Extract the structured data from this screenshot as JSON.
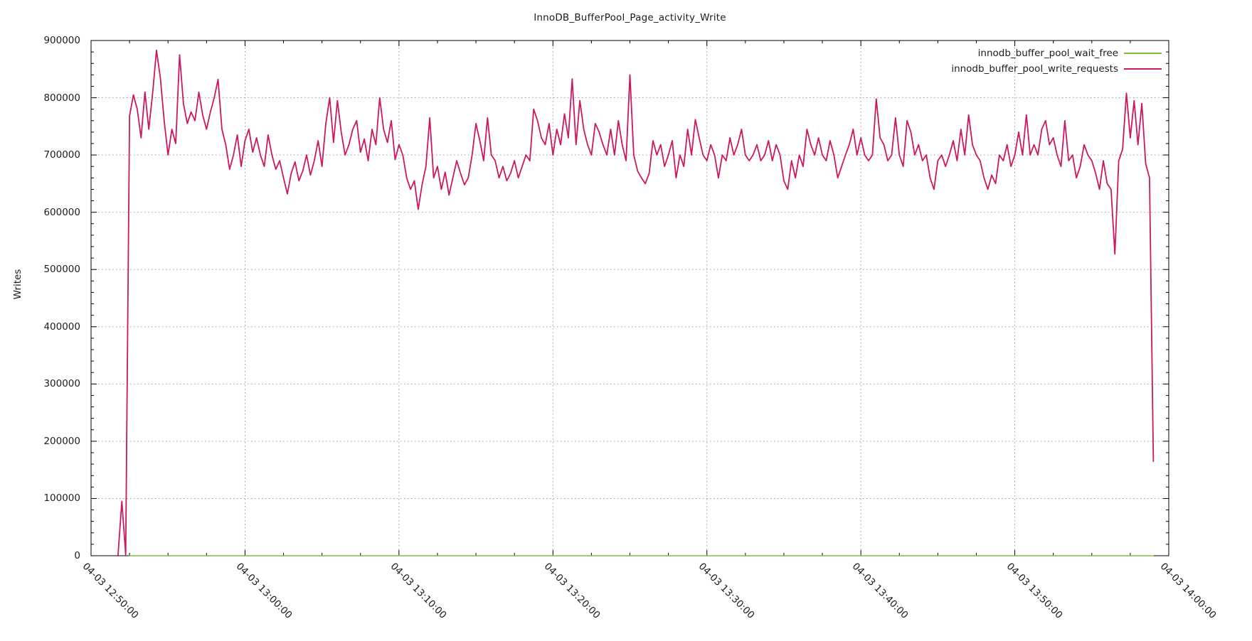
{
  "chart_data": {
    "type": "line",
    "title": "InnoDB_BufferPool_Page_activity_Write",
    "ylabel": "Writes",
    "xlabel": "",
    "ylim": [
      0,
      900000
    ],
    "y_major_step": 100000,
    "y_minor_step": 20000,
    "x_span_seconds": 4200,
    "x_major_step_s": 600,
    "x_minor_step_s": 150,
    "grid": "dotted-major-both-axes",
    "legend_position": "top-right-inside",
    "colors": {
      "wait_free": "#84BB3D",
      "write_requests": "#CC1862",
      "grid": "#8f8f8f",
      "axis": "#000000",
      "text": "#1c1c1c",
      "background": "#ffffff"
    },
    "y_ticks": [
      {
        "v": 0,
        "label": "0"
      },
      {
        "v": 100000,
        "label": "100000"
      },
      {
        "v": 200000,
        "label": "200000"
      },
      {
        "v": 300000,
        "label": "300000"
      },
      {
        "v": 400000,
        "label": "400000"
      },
      {
        "v": 500000,
        "label": "500000"
      },
      {
        "v": 600000,
        "label": "600000"
      },
      {
        "v": 700000,
        "label": "700000"
      },
      {
        "v": 800000,
        "label": "800000"
      },
      {
        "v": 900000,
        "label": "900000"
      }
    ],
    "x_ticks": [
      {
        "t": 0,
        "label": "04-03 12:50:00"
      },
      {
        "t": 600,
        "label": "04-03 13:00:00"
      },
      {
        "t": 1200,
        "label": "04-03 13:10:00"
      },
      {
        "t": 1800,
        "label": "04-03 13:20:00"
      },
      {
        "t": 2400,
        "label": "04-03 13:30:00"
      },
      {
        "t": 3000,
        "label": "04-03 13:40:00"
      },
      {
        "t": 3600,
        "label": "04-03 13:50:00"
      },
      {
        "t": 4200,
        "label": "04-03 14:00:00"
      }
    ],
    "series": [
      {
        "name": "innodb_buffer_pool_wait_free",
        "color_key": "wait_free",
        "stroke_width": 1.4,
        "xy": [
          [
            150,
            0
          ],
          [
            4140,
            0
          ]
        ]
      },
      {
        "name": "innodb_buffer_pool_write_requests",
        "color_key": "write_requests",
        "stroke_width": 1.8,
        "start_s": 105,
        "step_s": 15,
        "values": [
          0,
          95000,
          2000,
          768000,
          805000,
          780000,
          730000,
          810000,
          745000,
          808000,
          883000,
          835000,
          760000,
          700000,
          745000,
          720000,
          875000,
          790000,
          755000,
          775000,
          760000,
          810000,
          770000,
          745000,
          775000,
          800000,
          832000,
          745000,
          718000,
          675000,
          700000,
          735000,
          680000,
          725000,
          745000,
          705000,
          730000,
          700000,
          680000,
          735000,
          700000,
          675000,
          690000,
          660000,
          632000,
          668000,
          688000,
          655000,
          672000,
          700000,
          665000,
          690000,
          725000,
          680000,
          755000,
          800000,
          722000,
          795000,
          740000,
          700000,
          718000,
          745000,
          760000,
          705000,
          728000,
          690000,
          745000,
          718000,
          800000,
          745000,
          722000,
          760000,
          692000,
          718000,
          700000,
          660000,
          640000,
          655000,
          605000,
          648000,
          680000,
          765000,
          660000,
          680000,
          640000,
          670000,
          630000,
          660000,
          690000,
          668000,
          648000,
          660000,
          700000,
          755000,
          725000,
          690000,
          765000,
          700000,
          690000,
          660000,
          680000,
          655000,
          668000,
          690000,
          660000,
          680000,
          700000,
          690000,
          780000,
          760000,
          730000,
          718000,
          755000,
          700000,
          745000,
          718000,
          772000,
          730000,
          833000,
          718000,
          795000,
          745000,
          718000,
          700000,
          755000,
          740000,
          718000,
          700000,
          745000,
          700000,
          760000,
          718000,
          690000,
          840000,
          700000,
          672000,
          660000,
          650000,
          668000,
          725000,
          700000,
          718000,
          680000,
          700000,
          725000,
          660000,
          700000,
          680000,
          745000,
          700000,
          762000,
          730000,
          700000,
          690000,
          718000,
          700000,
          660000,
          700000,
          690000,
          730000,
          700000,
          718000,
          745000,
          700000,
          690000,
          700000,
          718000,
          690000,
          700000,
          725000,
          690000,
          718000,
          700000,
          655000,
          640000,
          690000,
          660000,
          700000,
          680000,
          745000,
          718000,
          700000,
          730000,
          700000,
          690000,
          725000,
          700000,
          660000,
          680000,
          700000,
          718000,
          745000,
          700000,
          730000,
          700000,
          690000,
          700000,
          798000,
          730000,
          718000,
          690000,
          700000,
          765000,
          700000,
          680000,
          760000,
          740000,
          700000,
          718000,
          690000,
          700000,
          660000,
          640000,
          690000,
          700000,
          680000,
          700000,
          725000,
          690000,
          745000,
          700000,
          770000,
          718000,
          700000,
          690000,
          660000,
          640000,
          665000,
          650000,
          700000,
          690000,
          718000,
          680000,
          700000,
          740000,
          700000,
          770000,
          700000,
          718000,
          700000,
          745000,
          760000,
          718000,
          730000,
          700000,
          680000,
          760000,
          690000,
          700000,
          660000,
          680000,
          718000,
          700000,
          690000,
          668000,
          640000,
          690000,
          650000,
          640000,
          527000,
          690000,
          710000,
          808000,
          730000,
          795000,
          718000,
          790000,
          685000,
          660000,
          165000
        ]
      }
    ]
  },
  "legend": {
    "items": [
      {
        "label": "innodb_buffer_pool_wait_free"
      },
      {
        "label": "innodb_buffer_pool_write_requests"
      }
    ]
  }
}
